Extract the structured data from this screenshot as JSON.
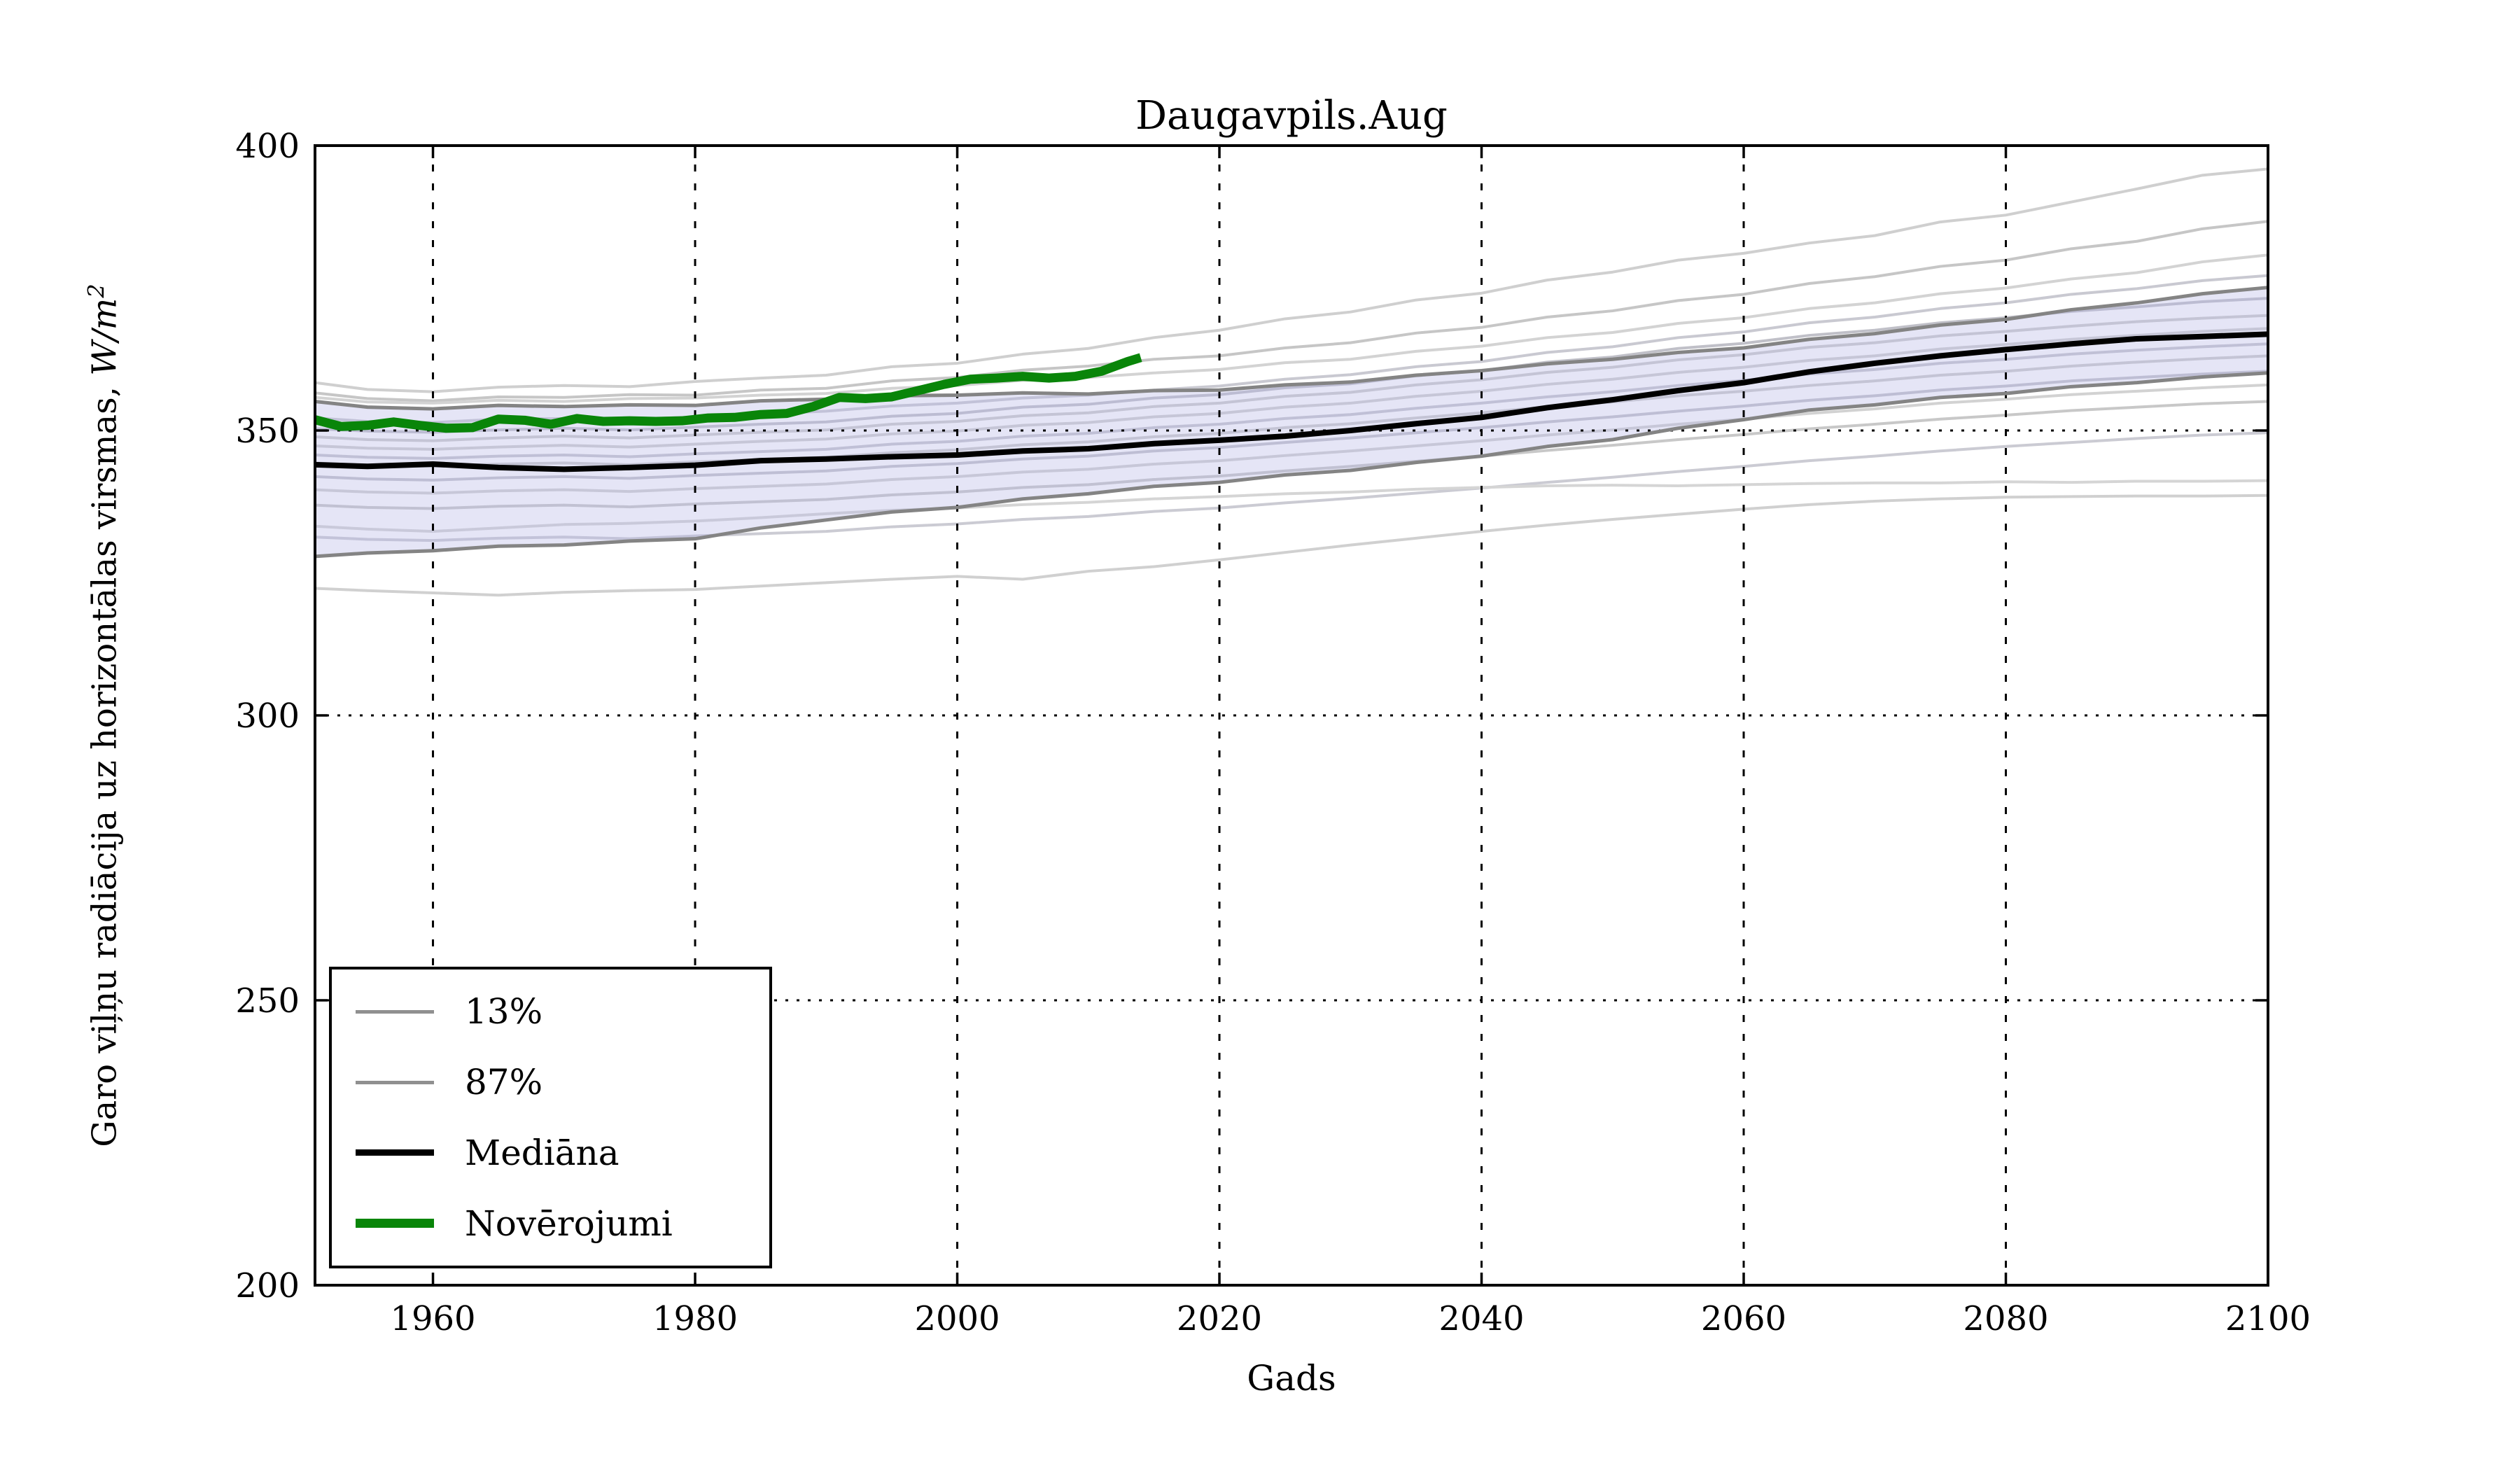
{
  "chart_data": {
    "type": "line",
    "title": "Daugavpils.Aug",
    "xlabel": "Gads",
    "ylabel_main": "Garo viļņu radiācija uz horizontālas virsmas, ",
    "ylabel_units": "W/m",
    "ylabel_sup": "2",
    "xlim": [
      1951,
      2100
    ],
    "ylim": [
      200,
      400
    ],
    "x_ticks": [
      1960,
      1980,
      2000,
      2020,
      2040,
      2060,
      2080,
      2100
    ],
    "y_ticks": [
      200,
      250,
      300,
      350,
      400
    ],
    "x_grid": [
      1960,
      1980,
      2000,
      2020,
      2040,
      2060,
      2080
    ],
    "y_grid": [
      250,
      300,
      350
    ],
    "grid_style": "dotted",
    "frame_color": "#000000",
    "years": [
      1951,
      1955,
      1960,
      1965,
      1970,
      1975,
      1980,
      1985,
      1990,
      1995,
      2000,
      2005,
      2010,
      2015,
      2020,
      2025,
      2030,
      2035,
      2040,
      2045,
      2050,
      2055,
      2060,
      2065,
      2070,
      2075,
      2080,
      2085,
      2090,
      2095,
      2100
    ],
    "band": {
      "label_upper": "87%",
      "label_lower": "13%",
      "fill": "#b4b4e4",
      "opacity": 0.35,
      "edge_color": "#848484",
      "edge_width": 5,
      "upper": [
        355.1,
        354.1,
        353.8,
        354.4,
        354.2,
        354.5,
        354.4,
        355.2,
        355.5,
        356.1,
        356.2,
        356.6,
        356.4,
        357.0,
        357.1,
        358.0,
        358.5,
        359.7,
        360.5,
        361.7,
        362.5,
        363.7,
        364.5,
        366.0,
        367.0,
        368.5,
        369.5,
        371.2,
        372.4,
        374.0,
        375.1
      ],
      "lower": [
        327.9,
        328.5,
        328.9,
        329.7,
        329.9,
        330.6,
        331.0,
        332.9,
        334.3,
        335.7,
        336.5,
        338.0,
        338.9,
        340.2,
        340.9,
        342.2,
        343.0,
        344.4,
        345.5,
        347.2,
        348.4,
        350.4,
        351.9,
        353.6,
        354.5,
        355.8,
        356.5,
        357.7,
        358.4,
        359.4,
        360.1
      ]
    },
    "median": {
      "label": "Mediāna",
      "color": "#000000",
      "width": 8,
      "values": [
        344.0,
        343.7,
        344.1,
        343.5,
        343.2,
        343.5,
        343.9,
        344.7,
        345.0,
        345.4,
        345.7,
        346.4,
        346.8,
        347.7,
        348.3,
        349.0,
        350.0,
        351.2,
        352.3,
        354.0,
        355.4,
        357.0,
        358.4,
        360.3,
        361.8,
        363.1,
        364.2,
        365.2,
        366.1,
        366.5,
        366.9
      ]
    },
    "observations": {
      "label": "Novērojumi",
      "color": "#098509",
      "width": 13,
      "years": [
        1951,
        1953,
        1955,
        1957,
        1959,
        1961,
        1963,
        1965,
        1967,
        1969,
        1971,
        1973,
        1975,
        1977,
        1979,
        1981,
        1983,
        1985,
        1987,
        1989,
        1991,
        1993,
        1995,
        1997,
        1999,
        2001,
        2003,
        2005,
        2007,
        2009,
        2011,
        2013,
        2014
      ],
      "values": [
        351.9,
        350.7,
        350.9,
        351.5,
        350.9,
        350.4,
        350.5,
        352.0,
        351.8,
        351.1,
        352.1,
        351.6,
        351.7,
        351.6,
        351.7,
        352.2,
        352.3,
        352.8,
        353.0,
        354.2,
        355.8,
        355.6,
        355.9,
        357.0,
        358.1,
        359.0,
        359.2,
        359.5,
        359.2,
        359.5,
        360.4,
        362.1,
        362.8
      ]
    },
    "ensemble": [
      {
        "color": "#cfcfcf",
        "width": 4,
        "values": [
          358.4,
          357.2,
          356.8,
          357.6,
          357.9,
          357.7,
          358.6,
          359.2,
          359.7,
          361.2,
          361.8,
          363.4,
          364.4,
          366.3,
          367.6,
          369.6,
          370.8,
          372.9,
          374.1,
          376.4,
          377.8,
          379.9,
          381.1,
          382.9,
          384.2,
          386.6,
          387.8,
          390.1,
          392.4,
          394.8,
          395.9
        ]
      },
      {
        "color": "#c6c6c6",
        "width": 4,
        "values": [
          356.6,
          355.6,
          355.2,
          355.9,
          355.8,
          356.3,
          356.2,
          357.1,
          357.4,
          358.7,
          359.3,
          360.6,
          361.3,
          362.5,
          363.1,
          364.5,
          365.4,
          367.1,
          368.1,
          369.9,
          371.0,
          372.8,
          373.9,
          375.8,
          377.0,
          378.8,
          379.9,
          381.9,
          383.2,
          385.4,
          386.7
        ]
      },
      {
        "color": "#d3d3d3",
        "width": 4,
        "values": [
          355.8,
          355.0,
          354.8,
          355.3,
          355.1,
          355.6,
          355.7,
          356.2,
          356.5,
          357.4,
          357.9,
          358.8,
          359.3,
          360.1,
          360.7,
          361.9,
          362.5,
          363.9,
          364.8,
          366.3,
          367.2,
          368.8,
          369.8,
          371.4,
          372.4,
          374.0,
          375.0,
          376.6,
          377.7,
          379.6,
          380.8
        ]
      },
      {
        "color": "#c9c9d1",
        "width": 4,
        "values": [
          352.2,
          351.6,
          351.4,
          352.0,
          352.1,
          351.9,
          352.4,
          352.9,
          353.4,
          354.3,
          354.8,
          355.7,
          356.2,
          357.1,
          357.8,
          359.0,
          359.8,
          361.2,
          362.1,
          363.7,
          364.7,
          366.3,
          367.3,
          368.9,
          369.9,
          371.4,
          372.4,
          373.9,
          374.9,
          376.3,
          377.2
        ]
      },
      {
        "color": "#c0c0c8",
        "width": 4,
        "values": [
          350.3,
          349.9,
          349.7,
          350.1,
          350.4,
          350.1,
          350.6,
          351.1,
          351.5,
          352.5,
          353.0,
          354.1,
          354.6,
          355.7,
          356.3,
          357.5,
          358.2,
          359.6,
          360.5,
          362.0,
          362.9,
          364.4,
          365.3,
          366.7,
          367.6,
          368.9,
          369.8,
          370.9,
          371.7,
          372.6,
          373.2
        ]
      },
      {
        "color": "#cccccc",
        "width": 4,
        "values": [
          348.9,
          348.4,
          348.2,
          348.7,
          349.0,
          348.7,
          349.2,
          349.7,
          350.1,
          351.1,
          351.6,
          352.6,
          353.1,
          354.2,
          354.8,
          356.0,
          356.7,
          358.0,
          358.9,
          360.2,
          361.1,
          362.4,
          363.3,
          364.6,
          365.4,
          366.6,
          367.4,
          368.3,
          369.1,
          369.7,
          370.2
        ]
      },
      {
        "color": "#d0d0d0",
        "width": 4,
        "values": [
          347.3,
          346.9,
          346.7,
          347.1,
          347.4,
          347.1,
          347.6,
          348.1,
          348.5,
          349.4,
          349.9,
          350.9,
          351.4,
          352.4,
          353.0,
          354.1,
          354.8,
          356.0,
          356.9,
          358.1,
          359.0,
          360.2,
          361.1,
          362.3,
          363.1,
          364.3,
          365.1,
          366.0,
          366.7,
          367.4,
          367.9
        ]
      },
      {
        "color": "#c6c6ce",
        "width": 4,
        "values": [
          345.7,
          345.3,
          345.1,
          345.5,
          345.7,
          345.4,
          345.9,
          346.3,
          346.7,
          347.6,
          348.1,
          349.0,
          349.5,
          350.5,
          351.1,
          352.1,
          352.8,
          353.9,
          354.8,
          355.9,
          356.8,
          357.9,
          358.8,
          359.9,
          360.7,
          361.8,
          362.5,
          363.4,
          364.1,
          364.7,
          365.2
        ]
      },
      {
        "color": "#cdcdcd",
        "width": 4,
        "values": [
          344.3,
          343.9,
          343.7,
          344.1,
          344.3,
          344.0,
          344.5,
          344.9,
          345.3,
          346.1,
          346.6,
          347.5,
          348.0,
          348.9,
          349.5,
          350.5,
          351.2,
          352.2,
          353.1,
          354.2,
          355.0,
          356.1,
          356.9,
          357.9,
          358.7,
          359.7,
          360.4,
          361.3,
          362.0,
          362.6,
          363.1
        ]
      },
      {
        "color": "#c3c3cb",
        "width": 4,
        "values": [
          341.9,
          341.5,
          341.3,
          341.7,
          341.9,
          341.6,
          342.1,
          342.5,
          342.9,
          343.7,
          344.2,
          345.0,
          345.5,
          346.4,
          347.0,
          347.9,
          348.7,
          349.6,
          350.5,
          351.5,
          352.4,
          353.4,
          354.3,
          355.3,
          356.1,
          357.1,
          357.8,
          358.7,
          359.3,
          359.9,
          360.4
        ]
      },
      {
        "color": "#d2d2d2",
        "width": 4,
        "values": [
          339.6,
          339.2,
          339.0,
          339.4,
          339.6,
          339.3,
          339.8,
          340.2,
          340.6,
          341.4,
          341.9,
          342.7,
          343.2,
          344.1,
          344.7,
          345.6,
          346.4,
          347.3,
          348.2,
          349.2,
          350.1,
          351.1,
          352.0,
          353.0,
          353.8,
          354.8,
          355.5,
          356.3,
          356.9,
          357.5,
          358.0
        ]
      },
      {
        "color": "#c8c8c8",
        "width": 4,
        "values": [
          336.9,
          336.5,
          336.3,
          336.7,
          336.9,
          336.6,
          337.1,
          337.5,
          337.9,
          338.7,
          339.2,
          340.0,
          340.5,
          341.4,
          342.0,
          342.9,
          343.7,
          344.6,
          345.5,
          346.5,
          347.4,
          348.4,
          349.3,
          350.3,
          351.1,
          352.0,
          352.7,
          353.5,
          354.1,
          354.7,
          355.1
        ]
      },
      {
        "color": "#cbcbd3",
        "width": 4,
        "values": [
          331.3,
          330.9,
          330.7,
          331.1,
          331.3,
          331.0,
          331.5,
          331.9,
          332.3,
          333.1,
          333.6,
          334.4,
          334.9,
          335.8,
          336.4,
          337.3,
          338.1,
          339.0,
          339.9,
          340.9,
          341.8,
          342.8,
          343.7,
          344.7,
          345.5,
          346.4,
          347.2,
          347.9,
          348.6,
          349.2,
          349.6
        ]
      },
      {
        "color": "#d5d5d5",
        "width": 4,
        "values": [
          333.2,
          332.7,
          332.3,
          332.9,
          333.5,
          333.7,
          334.1,
          334.7,
          335.4,
          336.0,
          336.4,
          337.0,
          337.4,
          338.0,
          338.4,
          338.9,
          339.2,
          339.7,
          340.0,
          340.3,
          340.4,
          340.3,
          340.5,
          340.7,
          340.8,
          340.8,
          341.0,
          340.9,
          341.1,
          341.1,
          341.2
        ]
      },
      {
        "color": "#d0d0d0",
        "width": 4,
        "values": [
          322.3,
          321.9,
          321.5,
          321.1,
          321.6,
          321.9,
          322.1,
          322.7,
          323.3,
          323.9,
          324.4,
          323.9,
          325.3,
          326.1,
          327.3,
          328.6,
          329.9,
          331.1,
          332.3,
          333.4,
          334.4,
          335.3,
          336.2,
          337.0,
          337.6,
          338.0,
          338.3,
          338.4,
          338.5,
          338.5,
          338.6
        ]
      }
    ],
    "legend": {
      "position": "lower-left",
      "items": [
        {
          "label": "13%",
          "color": "#909090",
          "thickness": 5
        },
        {
          "label": "87%",
          "color": "#909090",
          "thickness": 5
        },
        {
          "label": "Mediāna",
          "color": "#000000",
          "thickness": 9
        },
        {
          "label": "Novērojumi",
          "color": "#098509",
          "thickness": 13
        }
      ]
    }
  }
}
